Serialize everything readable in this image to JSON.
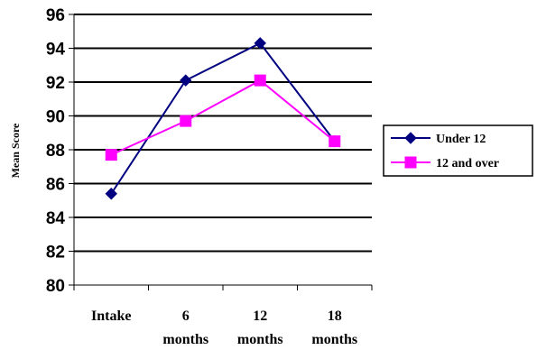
{
  "chart_data": {
    "type": "line",
    "title": "",
    "xlabel": "",
    "ylabel": "Mean Score",
    "categories": [
      [
        "Intake"
      ],
      [
        "6",
        "months"
      ],
      [
        "12",
        "months"
      ],
      [
        "18",
        "months"
      ]
    ],
    "ylim": [
      80,
      96
    ],
    "yticks": [
      80,
      82,
      84,
      86,
      88,
      90,
      92,
      94,
      96
    ],
    "grid": true,
    "legend_position": "right",
    "series": [
      {
        "name": "Under 12",
        "values": [
          85.4,
          92.1,
          94.3,
          88.5
        ],
        "color": "#000080",
        "marker": "diamond"
      },
      {
        "name": "12 and over",
        "values": [
          87.7,
          89.7,
          92.1,
          88.5
        ],
        "color": "#ff00ff",
        "marker": "square"
      }
    ]
  }
}
